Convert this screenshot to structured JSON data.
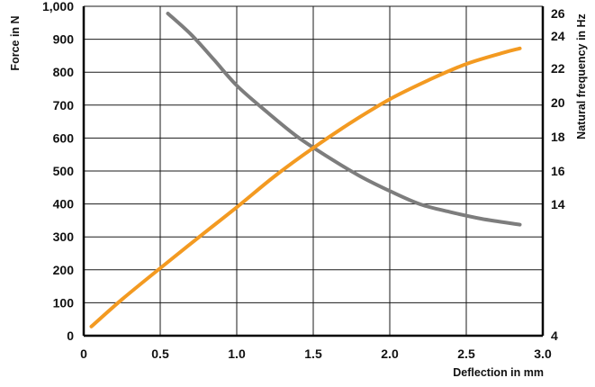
{
  "chart_data": {
    "type": "line",
    "xlabel": "Deflection in mm",
    "ylabel": "Force in N",
    "y2label": "Natural frequency in Hz",
    "xlim": [
      0,
      3.0
    ],
    "ylim": [
      0,
      1000
    ],
    "y2ticks": [
      4,
      14,
      16,
      18,
      20,
      22,
      24,
      26
    ],
    "x_ticks": [
      {
        "value": 0,
        "label": "0"
      },
      {
        "value": 0.5,
        "label": "0.5"
      },
      {
        "value": 1.0,
        "label": "1.0"
      },
      {
        "value": 1.5,
        "label": "1.5"
      },
      {
        "value": 2.0,
        "label": "2.0"
      },
      {
        "value": 2.5,
        "label": "2.5"
      },
      {
        "value": 3.0,
        "label": "3.0"
      }
    ],
    "y_ticks": [
      {
        "value": 0,
        "label": "0"
      },
      {
        "value": 100,
        "label": "100"
      },
      {
        "value": 200,
        "label": "200"
      },
      {
        "value": 300,
        "label": "300"
      },
      {
        "value": 400,
        "label": "400"
      },
      {
        "value": 500,
        "label": "500"
      },
      {
        "value": 600,
        "label": "600"
      },
      {
        "value": 700,
        "label": "700"
      },
      {
        "value": 800,
        "label": "800"
      },
      {
        "value": 900,
        "label": "900"
      },
      {
        "value": 1000,
        "label": "1,000"
      }
    ],
    "y2_ticks": [
      {
        "value": 4,
        "label": "4"
      },
      {
        "value": 14,
        "label": "14"
      },
      {
        "value": 16,
        "label": "16"
      },
      {
        "value": 18,
        "label": "18"
      },
      {
        "value": 20,
        "label": "20"
      },
      {
        "value": 22,
        "label": "22"
      },
      {
        "value": 24,
        "label": "24"
      },
      {
        "value": 26,
        "label": "26"
      }
    ],
    "grid": true,
    "series": [
      {
        "axis": "left",
        "color": "#f39a21",
        "x": [
          0.05,
          0.25,
          0.5,
          0.75,
          1.0,
          1.25,
          1.5,
          1.75,
          2.0,
          2.25,
          2.5,
          2.75,
          2.85
        ],
        "values": [
          28,
          110,
          205,
          298,
          390,
          485,
          570,
          648,
          718,
          775,
          825,
          860,
          872
        ]
      },
      {
        "axis": "right",
        "color": "#7d7d7d",
        "x": [
          0.55,
          0.7,
          0.85,
          1.0,
          1.2,
          1.4,
          1.6,
          1.8,
          2.0,
          2.2,
          2.4,
          2.6,
          2.85
        ],
        "values": [
          26.0,
          24.15,
          22.55,
          21.0,
          19.43,
          17.98,
          16.8,
          15.72,
          14.8,
          14.0,
          13.4,
          12.9,
          12.45
        ]
      }
    ]
  }
}
